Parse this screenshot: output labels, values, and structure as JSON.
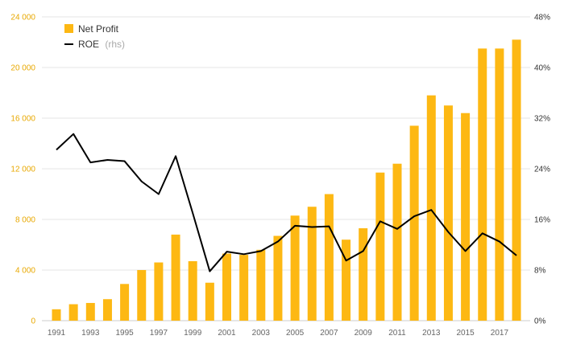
{
  "chart_data": {
    "type": "bar",
    "title": "",
    "xlabel": "",
    "categories": [
      "1991",
      "1992",
      "1993",
      "1994",
      "1995",
      "1996",
      "1997",
      "1998",
      "1999",
      "2000",
      "2001",
      "2002",
      "2003",
      "2004",
      "2005",
      "2006",
      "2007",
      "2008",
      "2009",
      "2010",
      "2011",
      "2012",
      "2013",
      "2014",
      "2015",
      "2016",
      "2017",
      "2018"
    ],
    "x_tick_labels": [
      "1991",
      "1993",
      "1995",
      "1997",
      "1999",
      "2001",
      "2003",
      "2005",
      "2007",
      "2009",
      "2011",
      "2013",
      "2015",
      "2017"
    ],
    "series": [
      {
        "name": "Net Profit",
        "type": "bar",
        "axis": "left",
        "color": "#fdb813",
        "values": [
          900,
          1300,
          1400,
          1700,
          2900,
          4000,
          4600,
          6800,
          4700,
          3000,
          5300,
          5200,
          5600,
          6700,
          8300,
          9000,
          10000,
          6400,
          7300,
          11700,
          12400,
          15400,
          17800,
          17000,
          16400,
          21500,
          21500,
          22200
        ]
      },
      {
        "name": "ROE",
        "name_suffix": "(rhs)",
        "type": "line",
        "axis": "right",
        "color": "#000000",
        "values": [
          27.0,
          29.5,
          25.0,
          25.4,
          25.2,
          22.0,
          20.0,
          26.0,
          17.0,
          7.8,
          10.9,
          10.5,
          11.0,
          12.5,
          15.0,
          14.8,
          14.9,
          9.5,
          11.0,
          15.7,
          14.5,
          16.5,
          17.5,
          14.0,
          11.0,
          13.8,
          12.5,
          10.3
        ]
      }
    ],
    "y_left": {
      "ylim": [
        0,
        24000
      ],
      "ticks": [
        0,
        4000,
        8000,
        12000,
        16000,
        20000,
        24000
      ],
      "tick_labels": [
        "0",
        "4 000",
        "8 000",
        "12 000",
        "16 000",
        "20 000",
        "24 000"
      ]
    },
    "y_right": {
      "ylim": [
        0,
        48
      ],
      "ticks": [
        0,
        8,
        16,
        24,
        32,
        40,
        48
      ],
      "tick_labels": [
        "0%",
        "8%",
        "16%",
        "24%",
        "32%",
        "40%",
        "48%"
      ]
    },
    "legend": {
      "placement": "top-left",
      "entries": [
        {
          "label": "Net Profit",
          "marker": "square"
        },
        {
          "label": "ROE",
          "sub": "(rhs)",
          "marker": "line"
        }
      ]
    },
    "grid": true
  }
}
